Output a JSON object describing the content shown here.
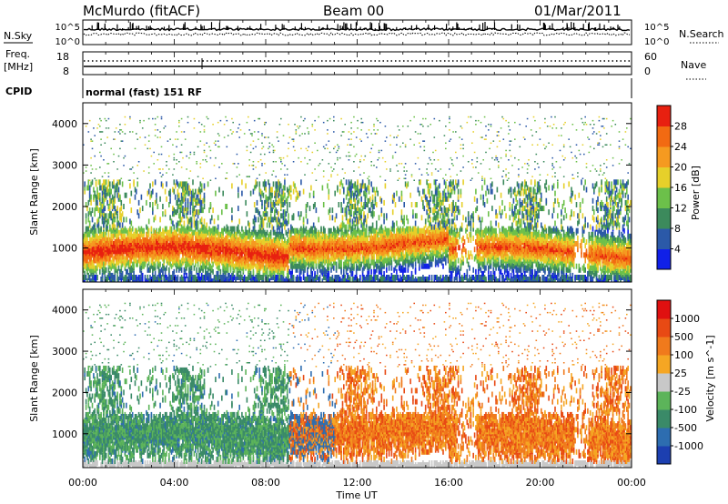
{
  "header": {
    "title": "McMurdo (fitACF)",
    "beam": "Beam 00",
    "date": "01/Mar/2011"
  },
  "nsky_panel": {
    "left_label": "N.Sky",
    "right_label": "N.Search",
    "yticks_left": [
      "10^5",
      "10^0"
    ],
    "yticks_right": [
      "10^5",
      "10^0"
    ]
  },
  "freq_panel": {
    "left_label_line1": "Freq.",
    "left_label_line2": "[MHz]",
    "right_label": "Nave",
    "yticks_left": [
      "18",
      "8"
    ],
    "yticks_right": [
      "60",
      "0"
    ]
  },
  "cpid_panel": {
    "label": "CPID",
    "text": "normal (fast) 151 RF"
  },
  "chart_data": [
    {
      "type": "heatmap",
      "name": "power",
      "ylabel": "Slant Range [km]",
      "yticks": [
        "1000",
        "2000",
        "3000",
        "4000"
      ],
      "ylim": [
        180,
        4500
      ],
      "xlim": [
        0,
        24
      ],
      "colorbar": {
        "label": "Power [dB]",
        "ticks": [
          "4",
          "8",
          "12",
          "16",
          "20",
          "24",
          "28"
        ],
        "colors": [
          "#1020e8",
          "#2b59a8",
          "#3c8a5c",
          "#6cc04a",
          "#e6d02a",
          "#f59a20",
          "#f26a12",
          "#e82010"
        ]
      }
    },
    {
      "type": "heatmap",
      "name": "velocity",
      "ylabel": "Slant Range [km]",
      "yticks": [
        "1000",
        "2000",
        "3000",
        "4000"
      ],
      "ylim": [
        180,
        4500
      ],
      "xlim": [
        0,
        24
      ],
      "xticks": [
        "00:00",
        "04:00",
        "08:00",
        "12:00",
        "16:00",
        "20:00",
        "00:00"
      ],
      "xlabel": "Time UT",
      "colorbar": {
        "label": "Velocity [m s^-1]",
        "ticks": [
          "1000",
          "500",
          "100",
          "25",
          "-25",
          "-100",
          "-500",
          "-1000"
        ],
        "colors": [
          "#1c3fb0",
          "#2d6db0",
          "#3a8a68",
          "#5cb45a",
          "#c8c8c8",
          "#f5a623",
          "#f07a1c",
          "#e84a14",
          "#e01010"
        ]
      }
    }
  ]
}
